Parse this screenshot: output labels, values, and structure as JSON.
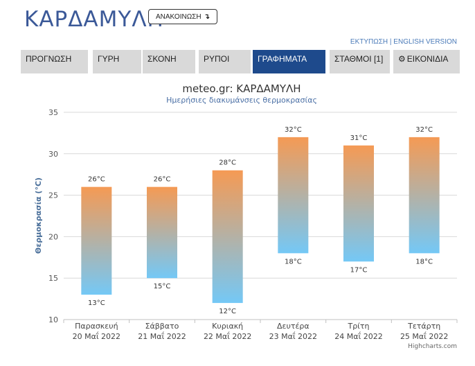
{
  "header": {
    "title": "ΚΑΡΔΑΜΥΛΗ",
    "announce_label": "ΑΝΑΚΟΙΝΩΣΗ",
    "announce_icon": "arrow-return-icon"
  },
  "links": {
    "print": "ΕΚΤΥΠΩΣΗ",
    "separator": "|",
    "english": "ENGLISH VERSION"
  },
  "tabs": [
    {
      "label": "ΠΡΟΓΝΩΣΗ"
    },
    {
      "label": "ΓΥΡΗ"
    },
    {
      "label": "ΣΚΟΝΗ"
    },
    {
      "label": "ΡΥΠΟΙ"
    },
    {
      "label": "ΓΡΑΦΗΜΑΤΑ",
      "active": true
    },
    {
      "label": "ΣΤΑΘΜΟΙ [1]"
    },
    {
      "label": "ΕΙΚΟΝΙΔΙΑ",
      "icon": "gear-icon"
    }
  ],
  "colors": {
    "title_blue": "#3b5998",
    "tab_active": "#1e4a8c",
    "tab_bg": "#d9d9d9",
    "bar_top": "#f59a54",
    "bar_bottom": "#74c8f6"
  },
  "chart_data": {
    "type": "bar",
    "subtype": "columnrange",
    "title": "meteo.gr: ΚΑΡΔΑΜΥΛΗ",
    "subtitle": "Ημερήσιες διακυμάνσεις θερμοκρασίας",
    "ylabel": "Θερμοκρασία (°C)",
    "xlabel": "",
    "ylim": [
      10,
      35
    ],
    "yticks": [
      10,
      15,
      20,
      25,
      30,
      35
    ],
    "grid": true,
    "categories": [
      [
        "Παρασκευή",
        "20 Μαΐ 2022"
      ],
      [
        "Σάββατο",
        "21 Μαΐ 2022"
      ],
      [
        "Κυριακή",
        "22 Μαΐ 2022"
      ],
      [
        "Δευτέρα",
        "23 Μαΐ 2022"
      ],
      [
        "Τρίτη",
        "24 Μαΐ 2022"
      ],
      [
        "Τετάρτη",
        "25 Μαΐ 2022"
      ]
    ],
    "series": [
      {
        "low": [
          13,
          15,
          12,
          18,
          17,
          18
        ],
        "high": [
          26,
          26,
          28,
          32,
          31,
          32
        ]
      }
    ],
    "unit_suffix": "°C",
    "credits": "Highcharts.com"
  }
}
